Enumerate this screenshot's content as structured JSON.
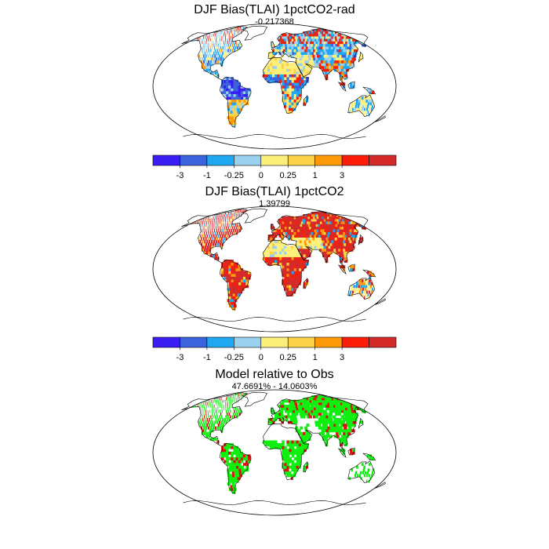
{
  "panels": [
    {
      "title": "DJF Bias(TLAI) 1pctCO2-rad",
      "subtitle": "-0.217368",
      "scheme": "bias_rad"
    },
    {
      "title": "DJF Bias(TLAI) 1pctCO2",
      "subtitle": "1.39799",
      "scheme": "bias_co2"
    },
    {
      "title": "Model relative to Obs",
      "subtitle": "47.6691% - 14.0603%",
      "scheme": "rel"
    }
  ],
  "colorbar": {
    "colors": [
      "#3a1df0",
      "#3b63dd",
      "#1fa7f2",
      "#9ad1ee",
      "#fdf07a",
      "#fbd24a",
      "#fe9a07",
      "#fb1d07",
      "#d42a2a"
    ],
    "labels": [
      "-3",
      "-1",
      "-0.25",
      "0",
      "0.25",
      "1",
      "3"
    ]
  },
  "palette": {
    "green": "#11ee11",
    "red": "#dd1111",
    "white": "#ffffff",
    "outline": "#000000"
  }
}
